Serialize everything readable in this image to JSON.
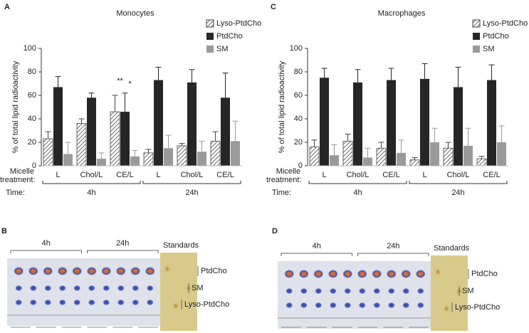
{
  "chart_data": [
    {
      "type": "bar",
      "panel": "A",
      "title": "Monocytes",
      "y_label": "% of total lipid radioactivity",
      "x_label": "Micelle treatment:",
      "time_label": "Time:",
      "time_groups": [
        "4h",
        "24h"
      ],
      "categories": [
        "L",
        "Chol/L",
        "CE/L",
        "L",
        "Chol/L",
        "CE/L"
      ],
      "series": [
        {
          "name": "Lyso-PtdCho",
          "color": "#444444",
          "hatch": true,
          "values": [
            23,
            36,
            46,
            11,
            17,
            21
          ],
          "errors": [
            6,
            4,
            14,
            3,
            2,
            8
          ]
        },
        {
          "name": "PtdCho",
          "color": "#262626",
          "values": [
            67,
            58,
            46,
            73,
            71,
            58
          ],
          "errors": [
            9,
            4,
            16,
            11,
            11,
            21
          ]
        },
        {
          "name": "SM",
          "color": "#9a9a9a",
          "values": [
            10,
            6,
            8,
            15,
            12,
            21
          ],
          "errors": [
            10,
            5,
            5,
            11,
            9,
            17
          ]
        }
      ],
      "annotations": [
        "**",
        "*"
      ],
      "ylim": [
        0,
        100
      ],
      "yticks": [
        0,
        20,
        40,
        60,
        80,
        100
      ]
    },
    {
      "type": "bar",
      "panel": "C",
      "title": "Macrophages",
      "y_label": "% of total lipid radioactivity",
      "x_label": "Micelle treatment:",
      "time_label": "Time:",
      "time_groups": [
        "4h",
        "24h"
      ],
      "categories": [
        "L",
        "Chol/L",
        "CE/L",
        "L",
        "Chol/L",
        "CE/L"
      ],
      "series": [
        {
          "name": "Lyso-PtdCho",
          "color": "#444444",
          "hatch": true,
          "values": [
            16,
            21,
            15,
            5,
            15,
            6
          ],
          "errors": [
            6,
            6,
            5,
            2,
            5,
            2
          ]
        },
        {
          "name": "PtdCho",
          "color": "#262626",
          "values": [
            75,
            71,
            73,
            74,
            67,
            73
          ],
          "errors": [
            8,
            11,
            10,
            13,
            17,
            13
          ]
        },
        {
          "name": "SM",
          "color": "#9a9a9a",
          "values": [
            9,
            7,
            11,
            20,
            17,
            20
          ],
          "errors": [
            9,
            8,
            11,
            12,
            15,
            14
          ]
        }
      ],
      "ylim": [
        0,
        100
      ],
      "yticks": [
        0,
        20,
        40,
        60,
        80,
        100
      ]
    }
  ],
  "blots": [
    {
      "panel": "B",
      "times": [
        "4h",
        "24h"
      ],
      "standards": "Standards",
      "bands": [
        "PtdCho",
        "SM",
        "Lyso-PtdCho"
      ]
    },
    {
      "panel": "D",
      "times": [
        "4h",
        "24h"
      ],
      "standards": "Standards",
      "bands": [
        "PtdCho",
        "SM",
        "Lyso-PtdCho"
      ]
    }
  ]
}
